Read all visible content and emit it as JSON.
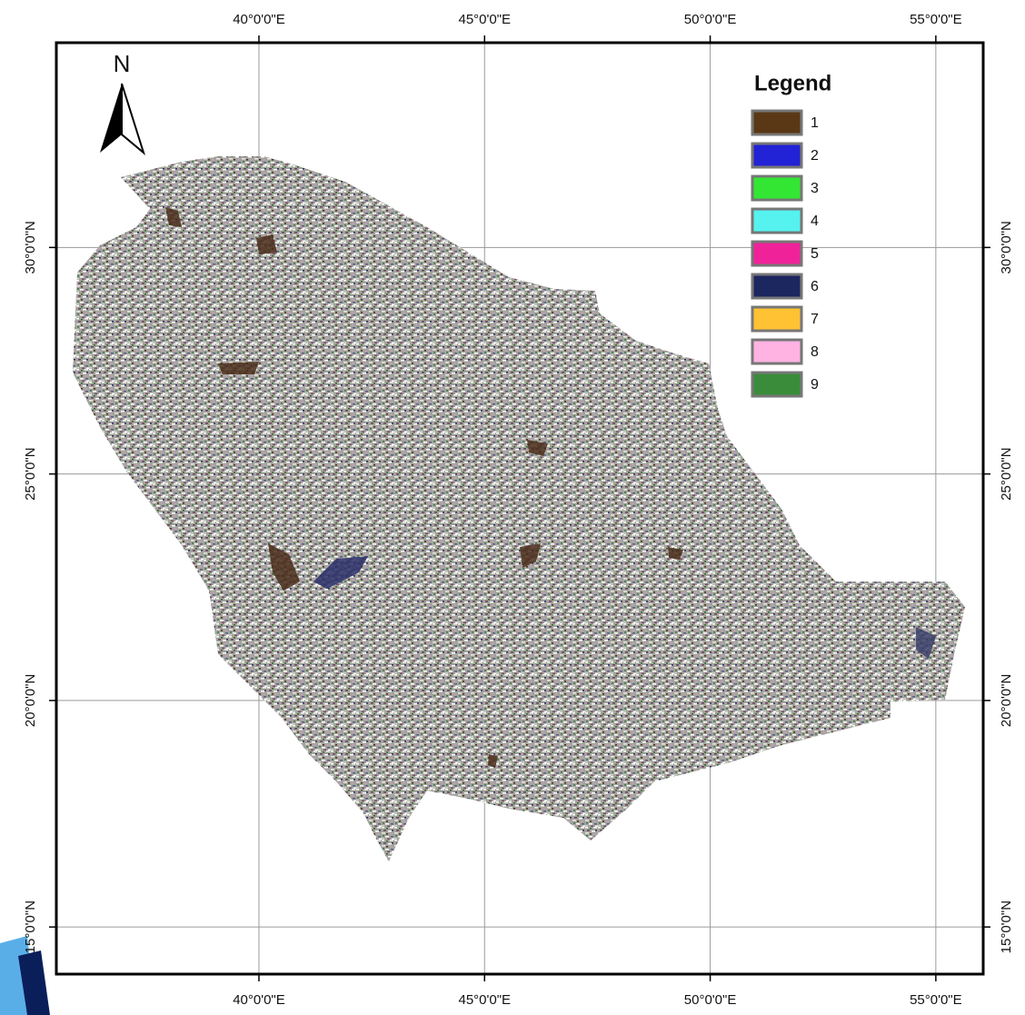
{
  "north_arrow": {
    "label": "N"
  },
  "legend": {
    "title": "Legend",
    "items": [
      {
        "label": "1",
        "color": "#5a3815"
      },
      {
        "label": "2",
        "color": "#2222d6"
      },
      {
        "label": "3",
        "color": "#33e633"
      },
      {
        "label": "4",
        "color": "#55f2f0"
      },
      {
        "label": "5",
        "color": "#f0229a"
      },
      {
        "label": "6",
        "color": "#1c2760"
      },
      {
        "label": "7",
        "color": "#ffc233"
      },
      {
        "label": "8",
        "color": "#ffb3e3"
      },
      {
        "label": "9",
        "color": "#3a8c3a"
      }
    ]
  },
  "grid": {
    "lonlim": [
      35.51,
      56.05
    ],
    "latlim": [
      13.96,
      34.52
    ],
    "lon_ticks": [
      {
        "value": 40,
        "label": "40°0'0\"E"
      },
      {
        "value": 45,
        "label": "45°0'0\"E"
      },
      {
        "value": 50,
        "label": "50°0'0\"E"
      },
      {
        "value": 55,
        "label": "55°0'0\"E"
      }
    ],
    "lat_ticks": [
      {
        "value": 30,
        "label": "30°0'0\"N"
      },
      {
        "value": 25,
        "label": "25°0'0\"N"
      },
      {
        "value": 20,
        "label": "20°0'0\"N"
      },
      {
        "value": 15,
        "label": "15°0'0\"N"
      }
    ]
  }
}
